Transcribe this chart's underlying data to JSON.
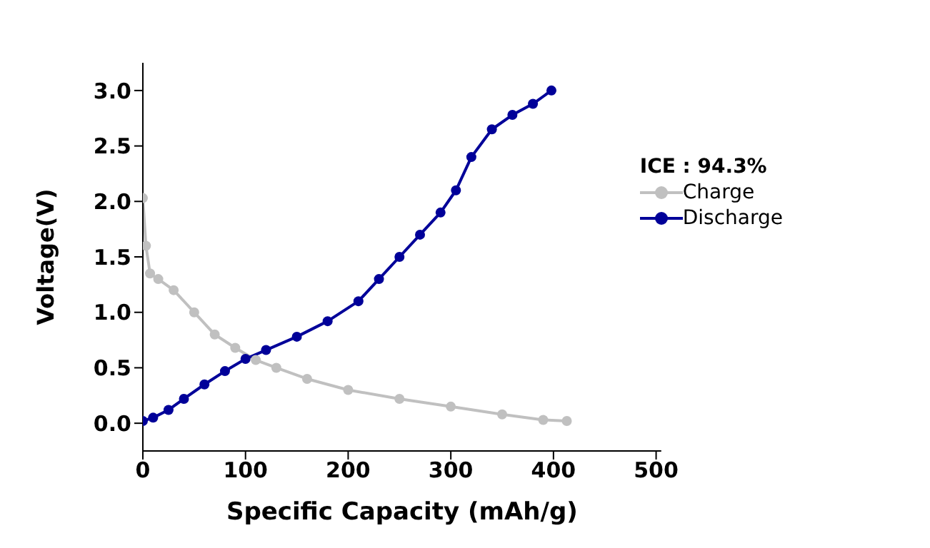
{
  "chart_data": {
    "type": "line",
    "xlabel": "Specific Capacity (mAh/g)",
    "ylabel": "Voltage(V)",
    "legend_title": "ICE : 94.3%",
    "legend": "right",
    "marker": "circle",
    "line_style": "solid",
    "grid": false,
    "xlim": [
      0,
      505
    ],
    "xticks": [
      0,
      100,
      200,
      300,
      400,
      500
    ],
    "ylim": [
      -0.25,
      3.25
    ],
    "yticks": [
      {
        "value": 0,
        "label": "0.0"
      },
      {
        "value": 0.5,
        "label": "0.5"
      },
      {
        "value": 1,
        "label": "1.0"
      },
      {
        "value": 1.5,
        "label": "1.5"
      },
      {
        "value": 2,
        "label": "2.0"
      },
      {
        "value": 2.5,
        "label": "2.5"
      },
      {
        "value": 3,
        "label": "3.0"
      }
    ],
    "series": [
      {
        "name": "Charge",
        "color": "#c0c0c0",
        "x": [
          0,
          3,
          7,
          15,
          30,
          50,
          70,
          90,
          110,
          130,
          160,
          200,
          250,
          300,
          350,
          390,
          413
        ],
        "values": [
          2.03,
          1.6,
          1.35,
          1.3,
          1.2,
          1.0,
          0.8,
          0.68,
          0.57,
          0.5,
          0.4,
          0.3,
          0.22,
          0.15,
          0.08,
          0.03,
          0.02
        ]
      },
      {
        "name": "Discharge",
        "color": "#000099",
        "x": [
          0,
          10,
          25,
          40,
          60,
          80,
          100,
          120,
          150,
          180,
          210,
          230,
          250,
          270,
          290,
          305,
          320,
          340,
          360,
          380,
          398
        ],
        "values": [
          0.02,
          0.05,
          0.12,
          0.22,
          0.35,
          0.47,
          0.58,
          0.66,
          0.78,
          0.92,
          1.1,
          1.3,
          1.5,
          1.7,
          1.9,
          2.1,
          2.4,
          2.65,
          2.78,
          2.88,
          3.0
        ]
      }
    ]
  }
}
